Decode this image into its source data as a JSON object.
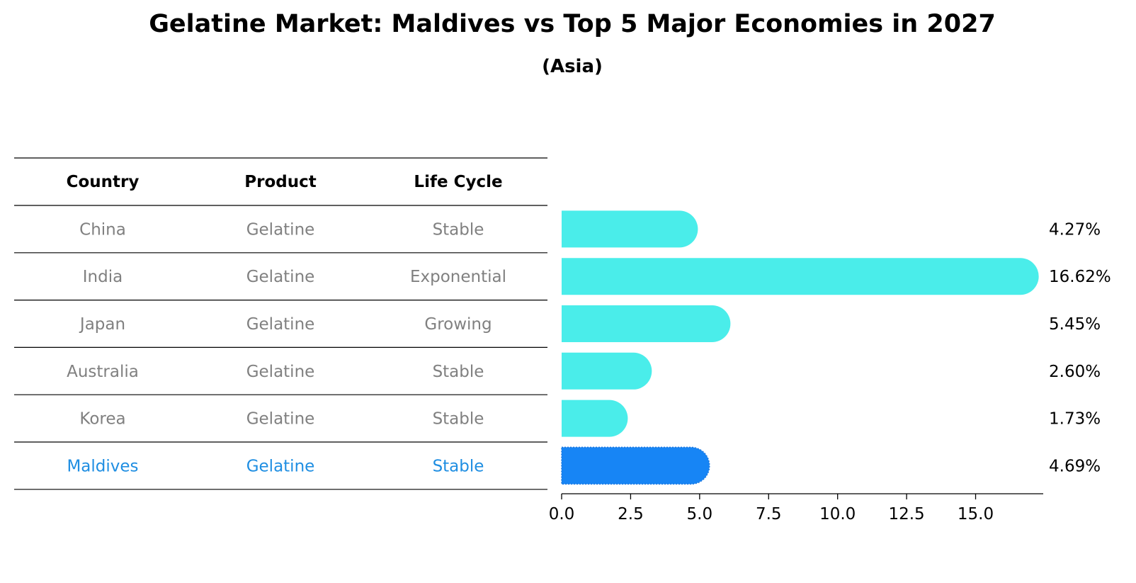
{
  "chart_data": {
    "type": "table",
    "title": "Gelatine Market: Maldives vs Top 5 Major Economies in 2027",
    "subtitle": "(Asia)",
    "columns": [
      "Country",
      "Product",
      "Life Cycle"
    ],
    "rows": [
      {
        "country": "China",
        "product": "Gelatine",
        "life_cycle": "Stable",
        "value": 4.27,
        "label": "4.27%",
        "highlight": false
      },
      {
        "country": "India",
        "product": "Gelatine",
        "life_cycle": "Exponential",
        "value": 16.62,
        "label": "16.62%",
        "highlight": false
      },
      {
        "country": "Japan",
        "product": "Gelatine",
        "life_cycle": "Growing",
        "value": 5.45,
        "label": "5.45%",
        "highlight": false
      },
      {
        "country": "Australia",
        "product": "Gelatine",
        "life_cycle": "Stable",
        "value": 2.6,
        "label": "2.60%",
        "highlight": false
      },
      {
        "country": "Korea",
        "product": "Gelatine",
        "life_cycle": "Stable",
        "value": 1.73,
        "label": "1.73%",
        "highlight": false
      },
      {
        "country": "Maldives",
        "product": "Gelatine",
        "life_cycle": "Stable",
        "value": 4.69,
        "label": "4.69%",
        "highlight": true
      }
    ],
    "bar_chart": {
      "type": "bar",
      "orientation": "horizontal",
      "xlim": [
        0,
        17.45
      ],
      "xticks": [
        0.0,
        2.5,
        5.0,
        7.5,
        10.0,
        12.5,
        15.0
      ],
      "xtick_labels": [
        "0.0",
        "2.5",
        "5.0",
        "7.5",
        "10.0",
        "12.5",
        "15.0"
      ],
      "xlabel": "",
      "ylabel": "",
      "grid": false
    },
    "colors": {
      "bar": "#4aedea",
      "highlight_bar": "#1785f5",
      "table_text": "#808080",
      "highlight_text": "#1f8ee2",
      "header_text": "#000000",
      "value_label": "#000000",
      "lines": "#000000"
    }
  }
}
